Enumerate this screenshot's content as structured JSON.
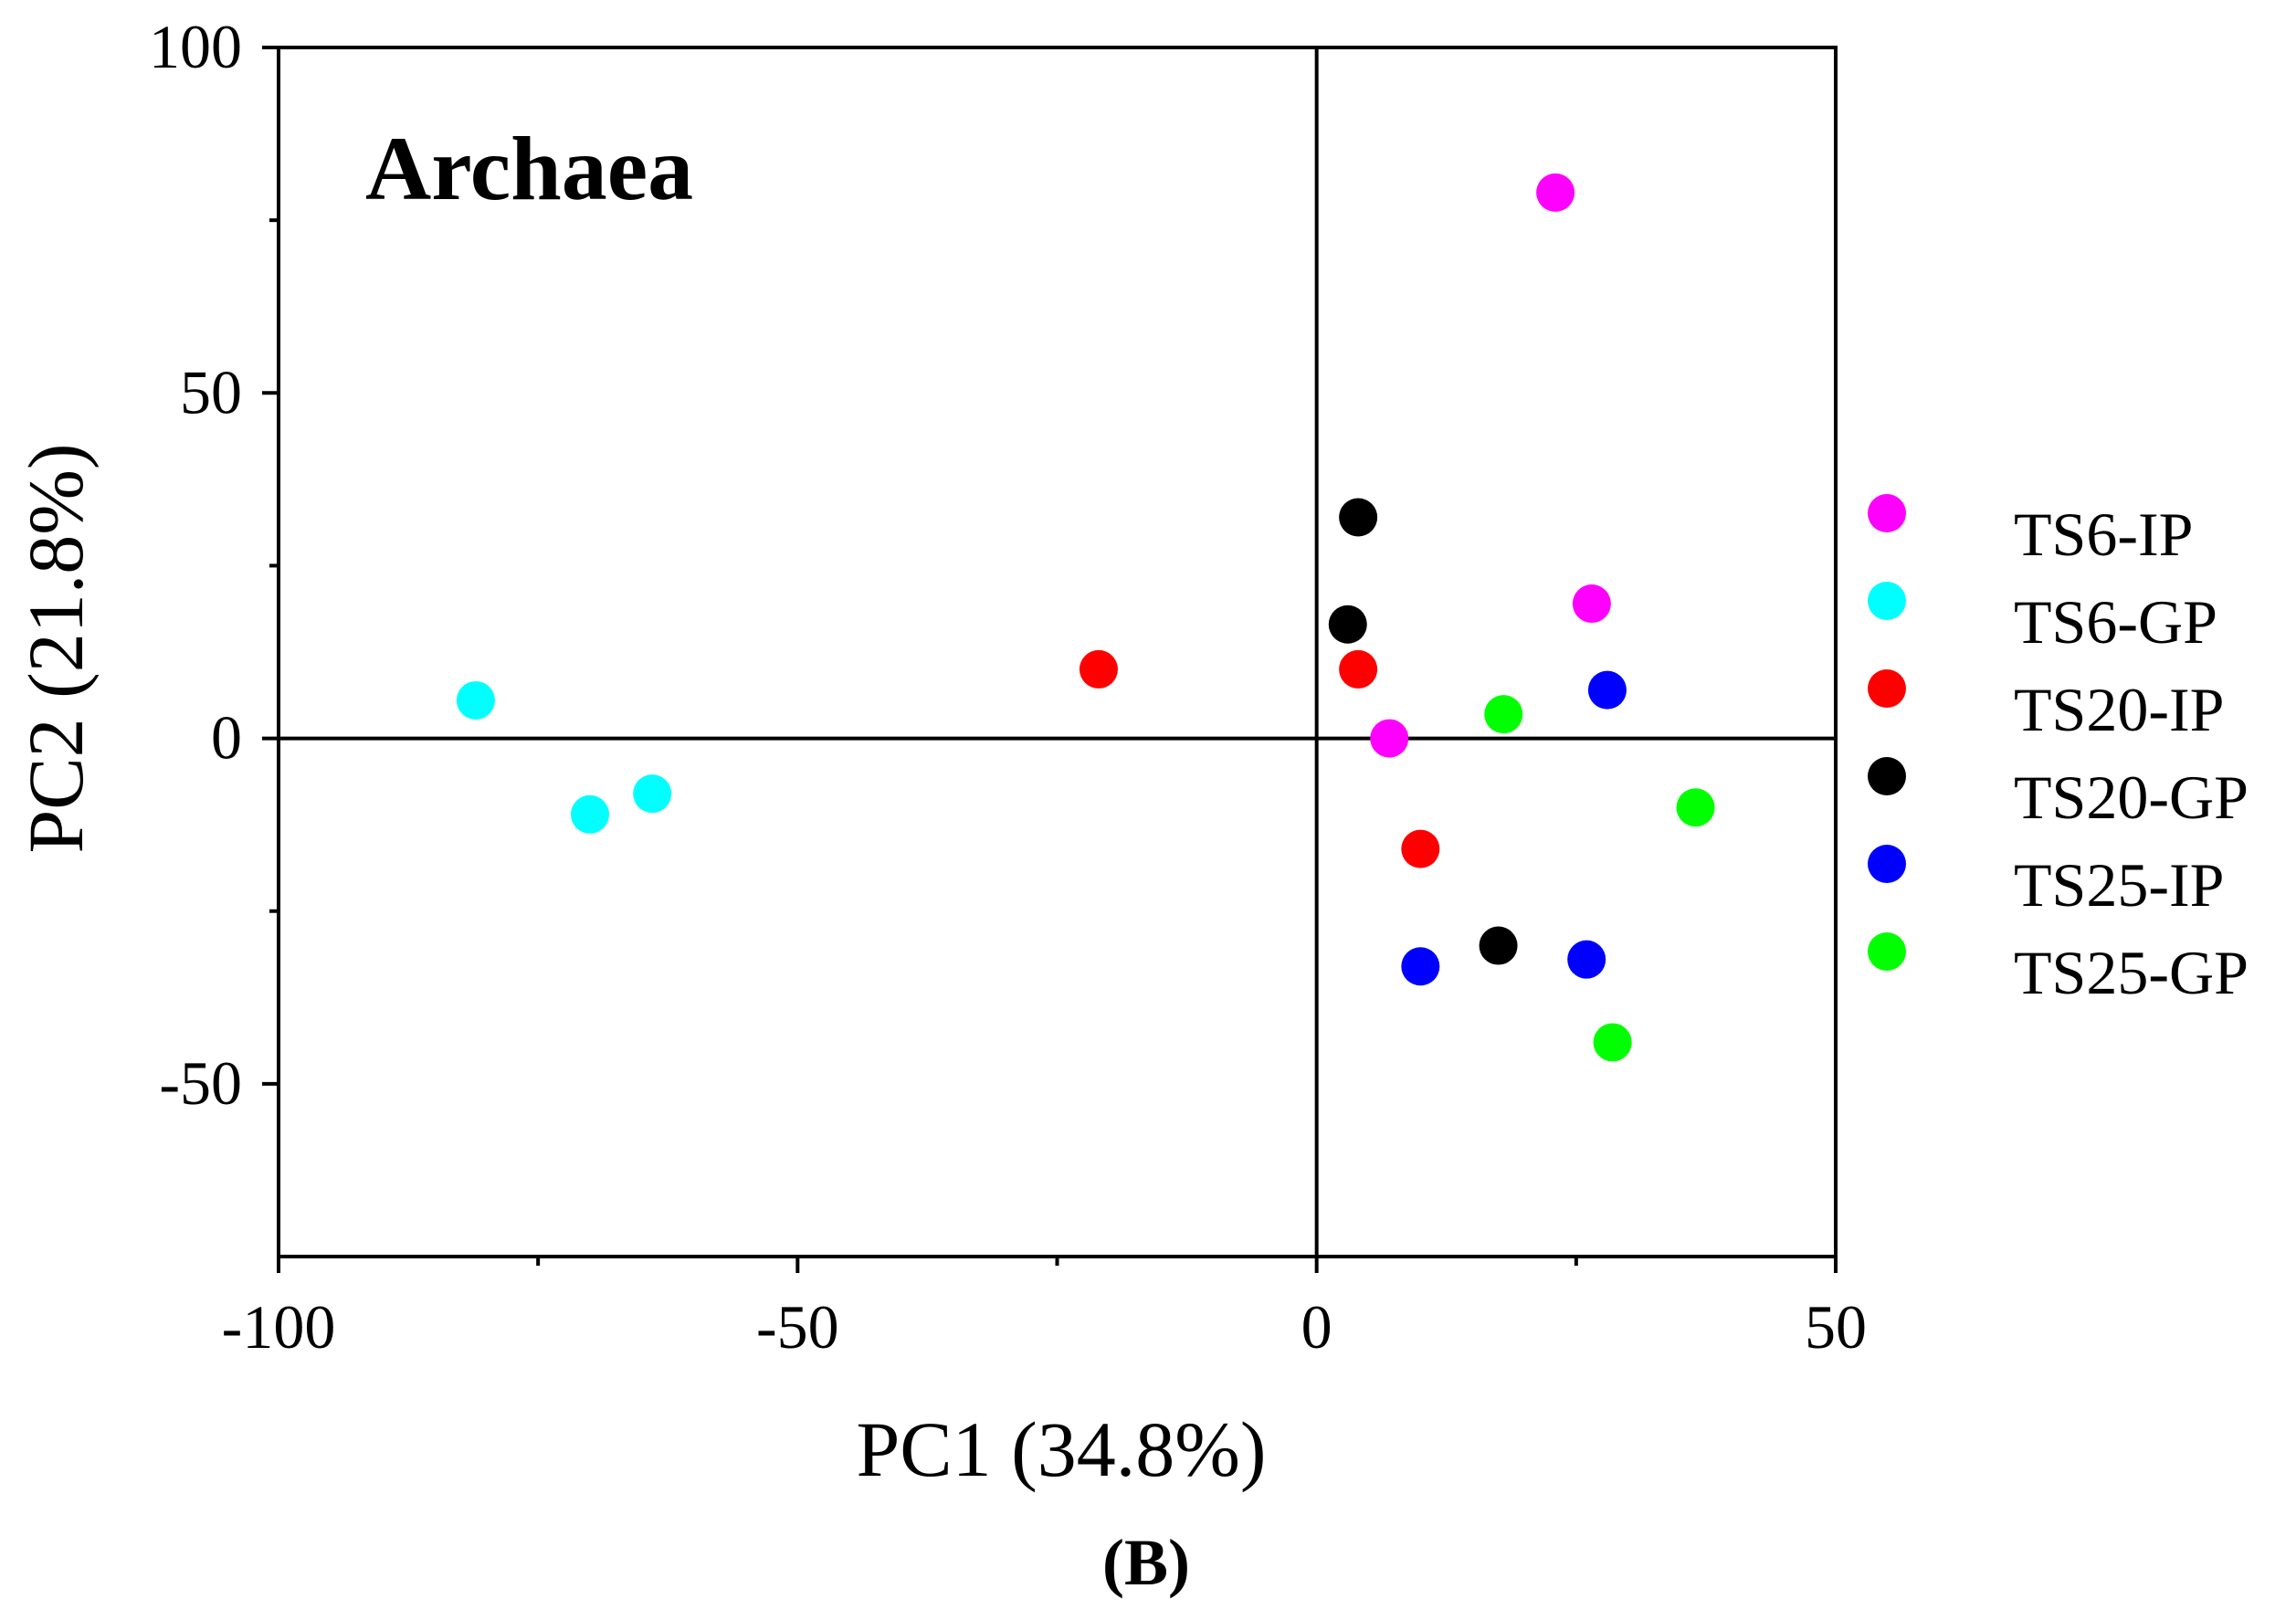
{
  "chart_data": {
    "type": "scatter",
    "title": "Archaea",
    "panel_label": "(B)",
    "xlabel": "PC1 (34.8%)",
    "ylabel": "PC2 (21.8%)",
    "xlim": [
      -100,
      50
    ],
    "ylim": [
      -75,
      100
    ],
    "x_ticks": [
      -100,
      -50,
      0,
      50
    ],
    "y_ticks": [
      -50,
      0,
      50,
      100
    ],
    "x_tick_labels": [
      "-100",
      "-50",
      "0",
      "50"
    ],
    "y_tick_labels": [
      "-50",
      "0",
      "50",
      "100"
    ],
    "reference_lines": {
      "x": 0,
      "y": 0
    },
    "legend_position": "right",
    "series": [
      {
        "name": "TS6-IP",
        "color": "#ff00ff",
        "points": [
          [
            23,
            79
          ],
          [
            26.5,
            19.5
          ],
          [
            7,
            0
          ]
        ]
      },
      {
        "name": "TS6-GP",
        "color": "#00ffff",
        "points": [
          [
            -81,
            5.5
          ],
          [
            -70,
            -11
          ],
          [
            -64,
            -8
          ]
        ]
      },
      {
        "name": "TS20-IP",
        "color": "#ff0000",
        "points": [
          [
            -21,
            10
          ],
          [
            4,
            10
          ],
          [
            10,
            -16
          ]
        ]
      },
      {
        "name": "TS20-GP",
        "color": "#000000",
        "points": [
          [
            4,
            32
          ],
          [
            3,
            16.5
          ],
          [
            17.5,
            -30
          ]
        ]
      },
      {
        "name": "TS25-IP",
        "color": "#0000ff",
        "points": [
          [
            28,
            7
          ],
          [
            10,
            -33
          ],
          [
            26,
            -32
          ]
        ]
      },
      {
        "name": "TS25-GP",
        "color": "#00ff00",
        "points": [
          [
            18,
            3.5
          ],
          [
            36.5,
            -10
          ],
          [
            28.5,
            -44
          ]
        ]
      }
    ]
  }
}
